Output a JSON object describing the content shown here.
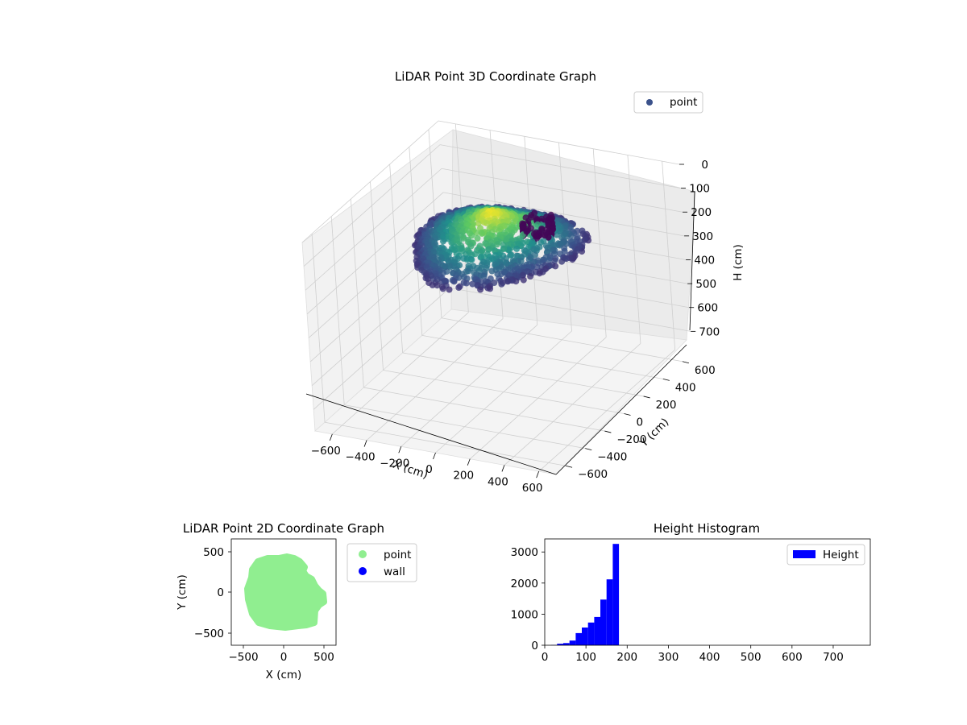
{
  "figure": {
    "background": "#ffffff"
  },
  "chart_data": [
    {
      "type": "scatter",
      "projection": "3d",
      "title": "LiDAR Point 3D Coordinate Graph",
      "xlabel": "X (cm)",
      "ylabel": "Y (cm)",
      "zlabel": "H (cm)",
      "xlim": [
        -700,
        700
      ],
      "ylim": [
        -700,
        700
      ],
      "zlim": [
        790,
        0
      ],
      "z_inverted": true,
      "x_ticks": [
        "−600",
        "−400",
        "−200",
        "0",
        "200",
        "400",
        "600"
      ],
      "y_ticks": [
        "−600",
        "−400",
        "−200",
        "0",
        "200",
        "400",
        "600"
      ],
      "z_ticks": [
        "0",
        "100",
        "200",
        "300",
        "400",
        "500",
        "600",
        "700"
      ],
      "grid": true,
      "colormap": "viridis",
      "legend": {
        "placement": "upper-right",
        "entries": [
          {
            "label": "point",
            "color": "#3b528b"
          }
        ]
      },
      "series": [
        {
          "name": "point",
          "description_shape": "roughly circular floor cloud, radius about 450 cm, heights 0 to 180 cm; darker cluster near right side"
        }
      ]
    },
    {
      "type": "scatter",
      "title": "LiDAR Point 2D Coordinate Graph",
      "xlabel": "X (cm)",
      "ylabel": "Y (cm)",
      "xlim": [
        -650,
        650
      ],
      "ylim": [
        -650,
        650
      ],
      "x_ticks": [
        "−500",
        "0",
        "500"
      ],
      "y_ticks": [
        "500",
        "0",
        "−500"
      ],
      "legend": {
        "placement": "outside-right",
        "entries": [
          {
            "label": "point",
            "color": "#90ee90"
          },
          {
            "label": "wall",
            "color": "#0000ff"
          }
        ]
      },
      "series": [
        {
          "name": "point",
          "color": "#90ee90",
          "outline": [
            [
              -320,
              380
            ],
            [
              -200,
              420
            ],
            [
              -60,
              420
            ],
            [
              40,
              440
            ],
            [
              130,
              420
            ],
            [
              200,
              380
            ],
            [
              260,
              310
            ],
            [
              240,
              260
            ],
            [
              280,
              200
            ],
            [
              350,
              160
            ],
            [
              390,
              80
            ],
            [
              440,
              20
            ],
            [
              490,
              -20
            ],
            [
              500,
              -120
            ],
            [
              440,
              -160
            ],
            [
              390,
              -230
            ],
            [
              380,
              -380
            ],
            [
              280,
              -410
            ],
            [
              180,
              -420
            ],
            [
              20,
              -440
            ],
            [
              -170,
              -420
            ],
            [
              -310,
              -380
            ],
            [
              -390,
              -270
            ],
            [
              -440,
              -90
            ],
            [
              -450,
              40
            ],
            [
              -400,
              180
            ],
            [
              -390,
              280
            ]
          ]
        },
        {
          "name": "wall",
          "color": "#0000ff",
          "points": []
        }
      ]
    },
    {
      "type": "bar",
      "subtype": "histogram",
      "title": "Height Histogram",
      "xlabel": "",
      "ylabel": "",
      "xlim": [
        0,
        790
      ],
      "ylim": [
        0,
        3420
      ],
      "x_ticks": [
        "0",
        "100",
        "200",
        "300",
        "400",
        "500",
        "600",
        "700"
      ],
      "y_ticks": [
        "0",
        "1000",
        "2000",
        "3000"
      ],
      "bin_width": 15,
      "legend": {
        "placement": "top-right",
        "entries": [
          {
            "label": "Height",
            "color": "#0000ff"
          }
        ]
      },
      "series": [
        {
          "name": "Height",
          "color": "#0000ff",
          "bins": [
            {
              "start": 15,
              "end": 30,
              "count": 10
            },
            {
              "start": 30,
              "end": 45,
              "count": 50
            },
            {
              "start": 45,
              "end": 60,
              "count": 70
            },
            {
              "start": 60,
              "end": 75,
              "count": 150
            },
            {
              "start": 75,
              "end": 90,
              "count": 390
            },
            {
              "start": 90,
              "end": 105,
              "count": 570
            },
            {
              "start": 105,
              "end": 120,
              "count": 730
            },
            {
              "start": 120,
              "end": 135,
              "count": 910
            },
            {
              "start": 135,
              "end": 150,
              "count": 1470
            },
            {
              "start": 150,
              "end": 165,
              "count": 2120
            },
            {
              "start": 165,
              "end": 180,
              "count": 3260
            }
          ]
        }
      ]
    }
  ]
}
